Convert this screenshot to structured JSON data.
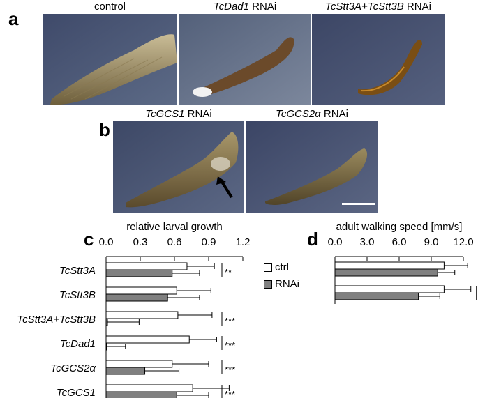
{
  "panel_labels": [
    "a",
    "b",
    "c",
    "d"
  ],
  "photos": {
    "a": [
      {
        "caption": "control",
        "italic": ""
      },
      {
        "caption": " RNAi",
        "italic": "TcDad1"
      },
      {
        "caption": " RNAi",
        "italic": "TcStt3A+TcStt3B"
      }
    ],
    "b": [
      {
        "caption": " RNAi",
        "italic": "TcGCS1"
      },
      {
        "caption": " RNAi",
        "italic": "TcGCS2α"
      }
    ]
  },
  "legend": {
    "ctrl": "ctrl",
    "rnai": "RNAi",
    "ctrl_color": "#ffffff",
    "rnai_color": "#808080"
  },
  "chart_data": [
    {
      "type": "bar",
      "orientation": "horizontal",
      "title": "relative larval growth",
      "xlim": [
        0,
        1.2
      ],
      "ticks": [
        "0.0",
        "0.3",
        "0.6",
        "0.9",
        "1.2"
      ],
      "tick_values": [
        0,
        0.3,
        0.6,
        0.9,
        1.2
      ],
      "categories": [
        "TcStt3A",
        "TcStt3B",
        "TcStt3A+TcStt3B",
        "TcDad1",
        "TcGCS2α",
        "TcGCS1"
      ],
      "series": [
        {
          "name": "ctrl",
          "values": [
            0.71,
            0.62,
            0.63,
            0.73,
            0.58,
            0.76
          ],
          "errors": [
            0.24,
            0.3,
            0.3,
            0.24,
            0.32,
            0.32
          ]
        },
        {
          "name": "RNAi",
          "values": [
            0.58,
            0.54,
            0.01,
            0.0,
            0.34,
            0.62
          ],
          "errors": [
            0.24,
            0.28,
            0.28,
            0.17,
            0.3,
            0.28
          ]
        }
      ],
      "significance": [
        "**",
        "",
        "***",
        "***",
        "***",
        "***"
      ]
    },
    {
      "type": "bar",
      "orientation": "horizontal",
      "title": "adult walking speed [mm/s]",
      "xlim": [
        0,
        12
      ],
      "ticks": [
        "0.0",
        "3.0",
        "6.0",
        "9.0",
        "12.0"
      ],
      "tick_values": [
        0,
        3,
        6,
        9,
        12
      ],
      "categories": [
        "",
        ""
      ],
      "series": [
        {
          "name": "ctrl",
          "values": [
            10.2,
            10.2
          ],
          "errors": [
            2.2,
            2.5
          ]
        },
        {
          "name": "RNAi",
          "values": [
            9.6,
            7.8
          ],
          "errors": [
            1.6,
            2.0
          ]
        }
      ],
      "significance": [
        "",
        "*"
      ]
    }
  ]
}
